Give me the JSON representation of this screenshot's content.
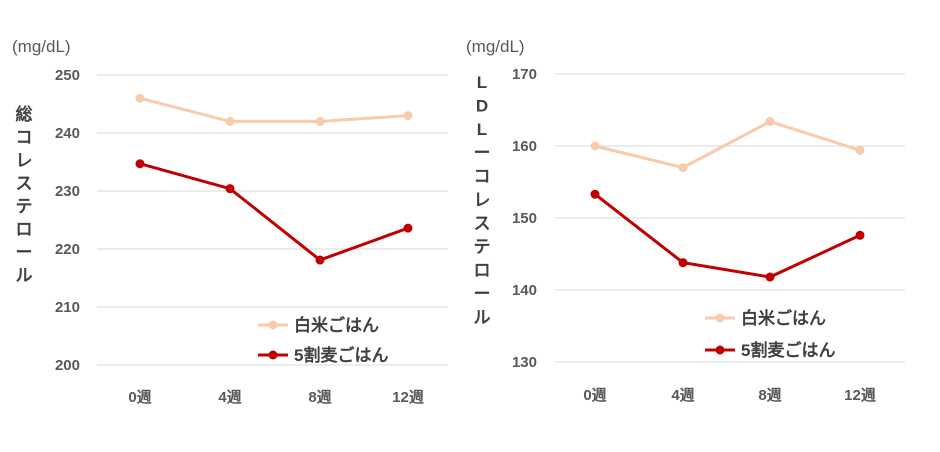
{
  "chart_data": [
    {
      "type": "line",
      "unit": "(mg/dL)",
      "ylabel": "総コレステロール",
      "categories": [
        "0週",
        "4週",
        "8週",
        "12週"
      ],
      "ylim": [
        200,
        250
      ],
      "yticks": [
        200,
        210,
        220,
        230,
        240,
        250
      ],
      "grid": true,
      "legend": "bottom-right",
      "series": [
        {
          "name": "白米ごはん",
          "color": "#F8CBAD",
          "values": [
            246,
            242,
            242,
            243
          ]
        },
        {
          "name": "5割麦ごはん",
          "color": "#C00000",
          "values": [
            234.7,
            230.4,
            218.1,
            223.6
          ]
        }
      ]
    },
    {
      "type": "line",
      "unit": "(mg/dL)",
      "ylabel": "LDLーコレステロール",
      "categories": [
        "0週",
        "4週",
        "8週",
        "12週"
      ],
      "ylim": [
        130,
        170
      ],
      "yticks": [
        130,
        140,
        150,
        160,
        170
      ],
      "grid": true,
      "legend": "bottom-right",
      "series": [
        {
          "name": "白米ごはん",
          "color": "#F8CBAD",
          "values": [
            160,
            157,
            163.4,
            159.4
          ]
        },
        {
          "name": "5割麦ごはん",
          "color": "#C00000",
          "values": [
            153.3,
            143.8,
            141.8,
            147.6
          ]
        }
      ]
    }
  ]
}
